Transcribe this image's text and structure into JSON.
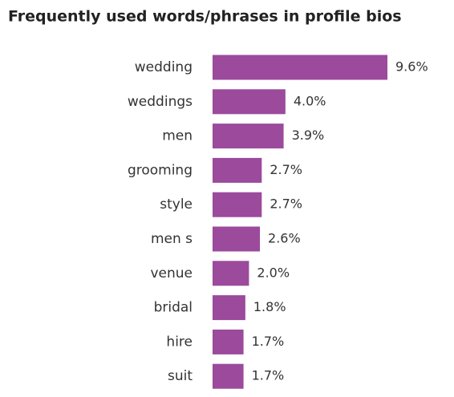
{
  "chart_data": {
    "type": "bar",
    "orientation": "horizontal",
    "title": "Frequently used words/phrases in profile bios",
    "categories": [
      "wedding",
      "weddings",
      "men",
      "grooming",
      "style",
      "men s",
      "venue",
      "bridal",
      "hire",
      "suit"
    ],
    "values": [
      9.6,
      4.0,
      3.9,
      2.7,
      2.7,
      2.6,
      2.0,
      1.8,
      1.7,
      1.7
    ],
    "value_labels": [
      "9.6%",
      "4.0%",
      "3.9%",
      "2.7%",
      "2.7%",
      "2.6%",
      "2.0%",
      "1.8%",
      "1.7%",
      "1.7%"
    ],
    "color": "#9b4a9c"
  }
}
